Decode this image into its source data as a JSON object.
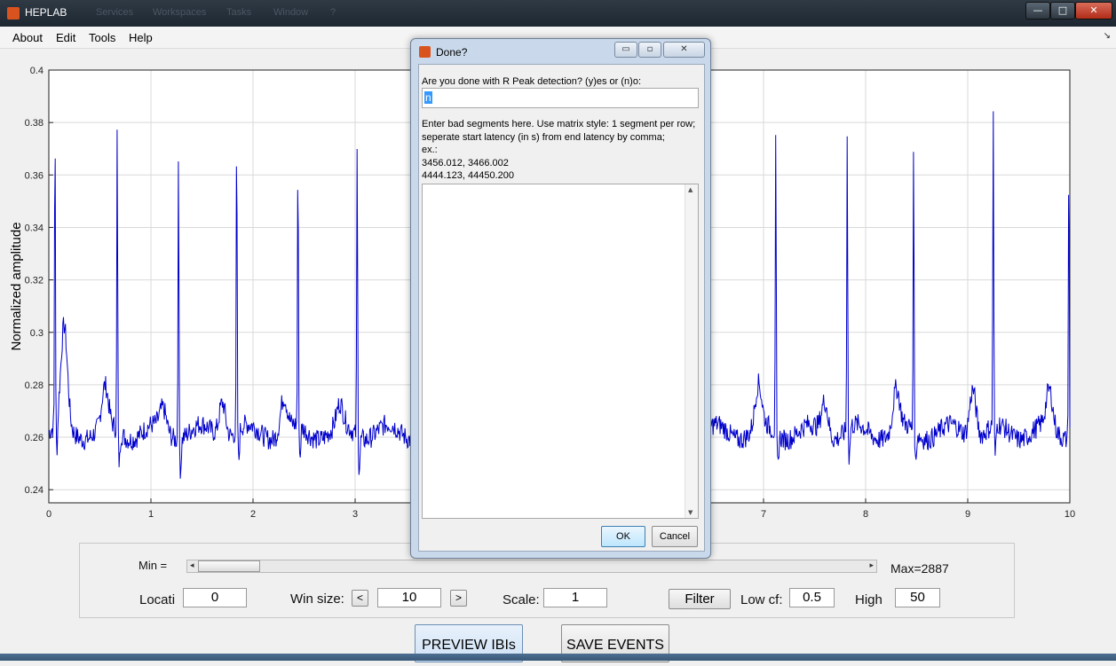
{
  "window": {
    "title": "HEPLAB",
    "ghost_menu": [
      "Services",
      "Workspaces",
      "Tasks",
      "Window",
      "?"
    ],
    "controls": [
      "—",
      "□",
      "✕"
    ]
  },
  "menubar": {
    "items": [
      "About",
      "Edit",
      "Tools",
      "Help"
    ],
    "dock_arrow": "↘"
  },
  "chart_data": {
    "type": "line",
    "xlim": [
      0,
      10
    ],
    "ylim": [
      0.235,
      0.4
    ],
    "xticks": [
      0,
      1,
      2,
      3,
      4,
      5,
      6,
      7,
      8,
      9,
      10
    ],
    "yticks": [
      0.24,
      0.26,
      0.28,
      0.3,
      0.32,
      0.34,
      0.36,
      0.38,
      0.4
    ],
    "ylabel": "Normalized amplitude",
    "xlabel": "",
    "grid": true,
    "line_color": "#0000cc",
    "baseline": 0.262,
    "r_peaks": [
      {
        "x": 0.06,
        "y": 0.385
      },
      {
        "x": 0.67,
        "y": 0.38
      },
      {
        "x": 1.27,
        "y": 0.377
      },
      {
        "x": 1.84,
        "y": 0.38
      },
      {
        "x": 2.44,
        "y": 0.369
      },
      {
        "x": 3.02,
        "y": 0.375
      },
      {
        "x": 7.12,
        "y": 0.377
      },
      {
        "x": 7.82,
        "y": 0.378
      },
      {
        "x": 8.47,
        "y": 0.377
      },
      {
        "x": 9.25,
        "y": 0.383
      },
      {
        "x": 9.99,
        "y": 0.372
      }
    ],
    "t_waves": [
      {
        "x": 0.15,
        "y": 0.3
      },
      {
        "x": 0.55,
        "y": 0.277
      },
      {
        "x": 1.12,
        "y": 0.27
      },
      {
        "x": 1.7,
        "y": 0.276
      },
      {
        "x": 2.3,
        "y": 0.275
      },
      {
        "x": 2.85,
        "y": 0.27
      },
      {
        "x": 6.95,
        "y": 0.278
      },
      {
        "x": 7.6,
        "y": 0.275
      },
      {
        "x": 8.3,
        "y": 0.277
      },
      {
        "x": 9.05,
        "y": 0.281
      },
      {
        "x": 9.8,
        "y": 0.276
      }
    ]
  },
  "panel": {
    "min_label": "Min =",
    "max_label": "Max=2887",
    "location_label": "Locati",
    "location_value": "0",
    "winsize_label": "Win size:",
    "winsize_value": "10",
    "dec_label": "<",
    "inc_label": ">",
    "scale_label": "Scale:",
    "scale_value": "1",
    "filter_label": "Filter",
    "lowcf_label": "Low cf:",
    "lowcf_value": "0.5",
    "high_label": "High",
    "high_value": "50",
    "slider_position": 0.0
  },
  "buttons": {
    "preview": "PREVIEW IBIs",
    "save": "SAVE EVENTS"
  },
  "dialog": {
    "title": "Done?",
    "prompt": "Are you done with R Peak detection? (y)es or (n)o:",
    "answer": "n",
    "instructions": [
      "Enter bad segments here. Use matrix style: 1 segment per row;",
      "seperate start latency (in s) from end latency by comma;",
      "ex.:",
      "3456.012, 3466.002",
      "4444.123, 44450.200"
    ],
    "segments_text": "",
    "ok_label": "OK",
    "cancel_label": "Cancel",
    "controls": [
      "▭",
      "▫",
      "✕"
    ]
  }
}
